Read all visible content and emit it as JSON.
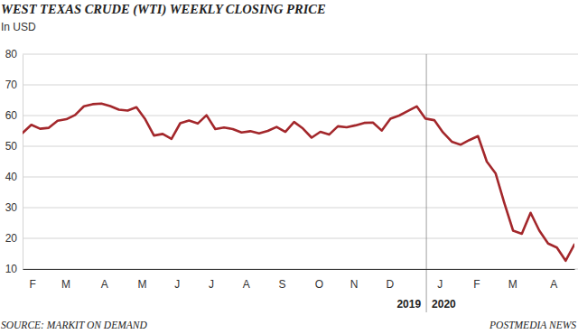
{
  "chart_data": {
    "type": "line",
    "title": "WEST TEXAS CRUDE (WTI) WEEKLY CLOSING PRICE",
    "subtitle": "In USD",
    "x": [
      0,
      1,
      2,
      3,
      4,
      5,
      6,
      7,
      8,
      9,
      10,
      11,
      12,
      13,
      14,
      15,
      16,
      17,
      18,
      19,
      20,
      21,
      22,
      23,
      24,
      25,
      26,
      27,
      28,
      29,
      30,
      31,
      32,
      33,
      34,
      35,
      36,
      37,
      38,
      39,
      40,
      41,
      42,
      43,
      44,
      45,
      46,
      47,
      48,
      49,
      50,
      51,
      52,
      53,
      54,
      55,
      56,
      57,
      58,
      59,
      60,
      61,
      62,
      63
    ],
    "values": [
      54.3,
      57,
      55.7,
      56,
      58.3,
      58.8,
      60.2,
      63,
      63.7,
      63.9,
      63.1,
      61.9,
      61.6,
      62.7,
      58.8,
      53.5,
      54,
      52.4,
      57.5,
      58.4,
      57.4,
      60.1,
      55.6,
      56.1,
      55.6,
      54.5,
      54.9,
      54.2,
      55,
      56.3,
      54.7,
      57.9,
      55.8,
      52.8,
      54.7,
      53.8,
      56.5,
      56.2,
      56.8,
      57.6,
      57.7,
      55.1,
      59,
      60,
      61.5,
      63,
      59,
      58.5,
      54.5,
      51.5,
      50.5,
      52,
      53.3,
      45,
      41.2,
      31.5,
      22.5,
      21.5,
      28.3,
      22.5,
      18.3,
      17,
      12.7,
      18
    ],
    "color": "#a3272b",
    "xlim": [
      0,
      63
    ],
    "xticks": [
      {
        "value": 1.1,
        "label": "F"
      },
      {
        "value": 4.9,
        "label": "M"
      },
      {
        "value": 9.3,
        "label": "A"
      },
      {
        "value": 13.6,
        "label": "M"
      },
      {
        "value": 17.6,
        "label": "J"
      },
      {
        "value": 21.5,
        "label": "J"
      },
      {
        "value": 25.5,
        "label": "A"
      },
      {
        "value": 29.6,
        "label": "S"
      },
      {
        "value": 33.8,
        "label": "O"
      },
      {
        "value": 37.8,
        "label": "N"
      },
      {
        "value": 41.9,
        "label": "D"
      },
      {
        "value": 47.6,
        "label": "J"
      },
      {
        "value": 51.8,
        "label": "F"
      },
      {
        "value": 55.9,
        "label": "M"
      },
      {
        "value": 60.6,
        "label": "A"
      }
    ],
    "ylim": [
      10,
      80
    ],
    "yticks": [
      10,
      20,
      30,
      40,
      50,
      60,
      70,
      80
    ],
    "grid": true,
    "annotations": [
      {
        "text": "2019",
        "x": 46.1
      },
      {
        "text": "2020",
        "x": 46.1
      }
    ],
    "source": "SOURCE: MARKIT ON DEMAND",
    "credit": "POSTMEDIA NEWS"
  }
}
